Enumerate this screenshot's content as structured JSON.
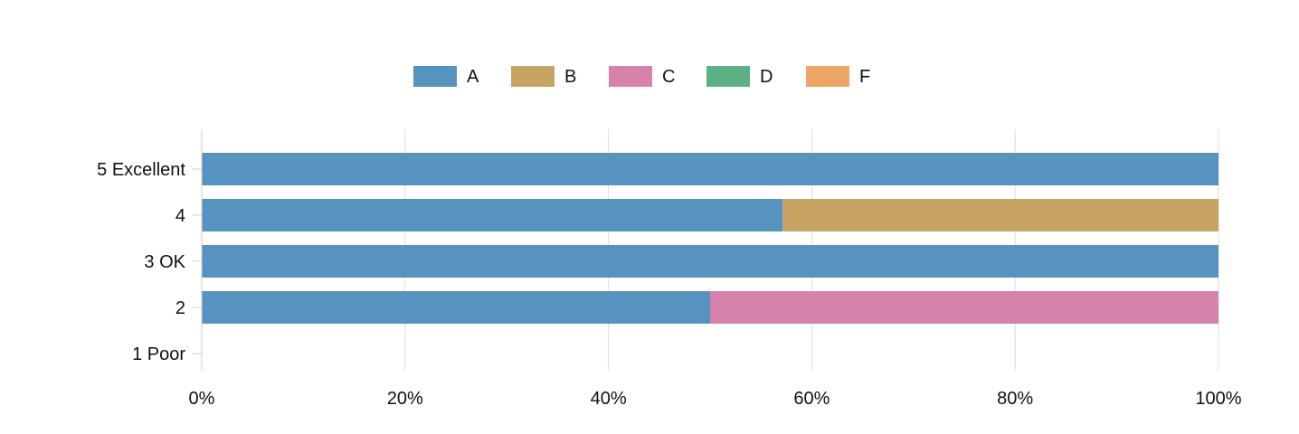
{
  "chart_data": {
    "type": "bar",
    "orientation": "horizontal",
    "stacked": true,
    "normalized_percent": true,
    "categories": [
      "5 Excellent",
      "4",
      "3 OK",
      "2",
      "1 Poor"
    ],
    "series": [
      {
        "name": "A",
        "color": "#5793bf",
        "values": [
          100,
          57.14,
          100,
          50,
          0
        ]
      },
      {
        "name": "B",
        "color": "#c8a464",
        "values": [
          0,
          42.86,
          0,
          0,
          0
        ]
      },
      {
        "name": "C",
        "color": "#d782ab",
        "values": [
          0,
          0,
          0,
          50,
          0
        ]
      },
      {
        "name": "D",
        "color": "#5cb084",
        "values": [
          0,
          0,
          0,
          0,
          0
        ]
      },
      {
        "name": "F",
        "color": "#eba566",
        "values": [
          0,
          0,
          0,
          0,
          0
        ]
      }
    ],
    "xlim": [
      0,
      100
    ],
    "x_ticks": [
      "0%",
      "20%",
      "40%",
      "60%",
      "80%",
      "100%"
    ],
    "x_tick_values": [
      0,
      20,
      40,
      60,
      80,
      100
    ],
    "grid": true,
    "legend_position": "top-center"
  }
}
